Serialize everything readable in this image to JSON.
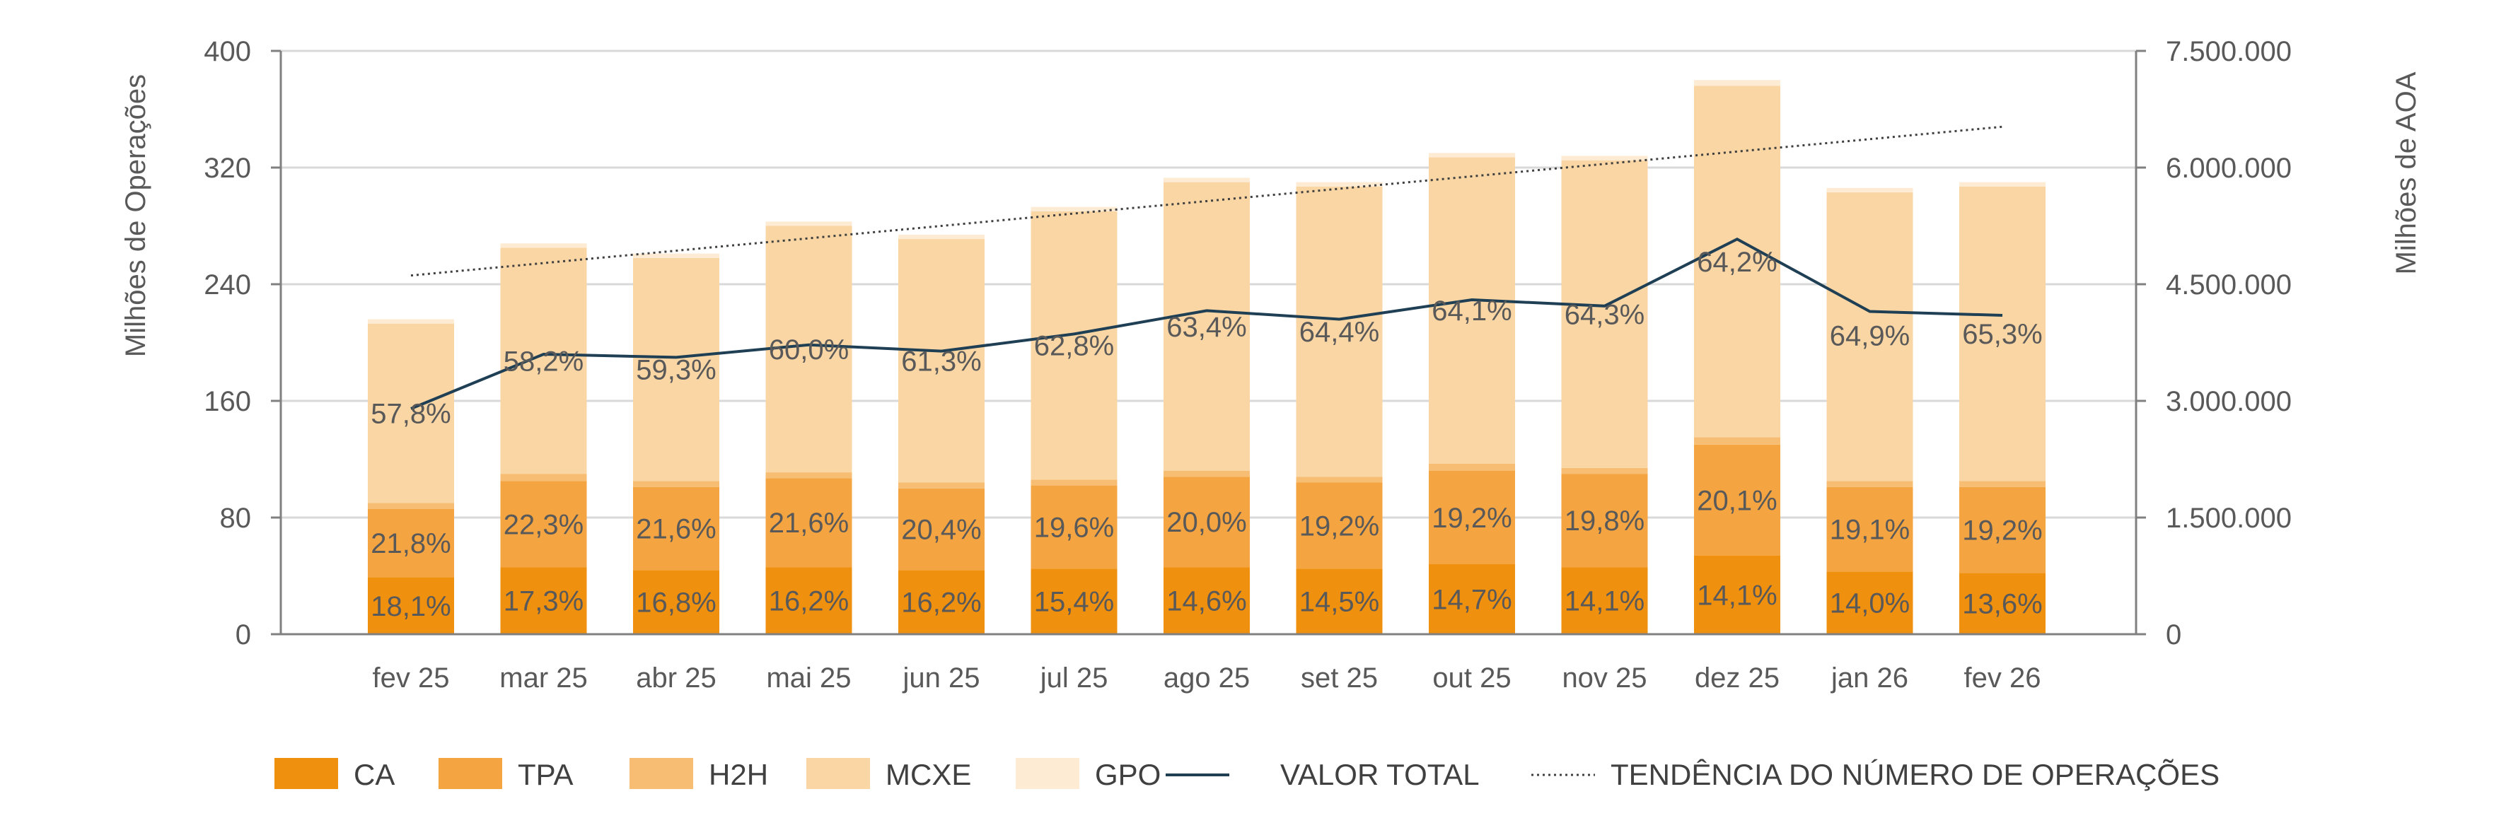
{
  "chart_data": {
    "type": "bar",
    "stacked": true,
    "categories": [
      "fev 25",
      "mar 25",
      "abr 25",
      "mai 25",
      "jun 25",
      "jul 25",
      "ago 25",
      "set 25",
      "out 25",
      "nov 25",
      "dez 25",
      "jan 26",
      "fev 26"
    ],
    "ylabel": "Milhões de Operações",
    "ylabel_right": "Milhões de AOA",
    "ylim": [
      0,
      400
    ],
    "yticks": [
      "0",
      "80",
      "160",
      "240",
      "320",
      "400"
    ],
    "ylim_right": [
      0,
      7500000
    ],
    "yticks_right": [
      "0",
      "1.500.000",
      "3.000.000",
      "4.500.000",
      "6.000.000",
      "7.500.000"
    ],
    "grid": true,
    "legend_position": "bottom",
    "series": [
      {
        "name": "CA",
        "color": "#F0900F",
        "values": [
          39,
          46,
          44,
          46,
          44,
          45,
          46,
          45,
          48,
          46,
          54,
          43,
          42
        ]
      },
      {
        "name": "TPA",
        "color": "#F4A541",
        "values": [
          47,
          59,
          57,
          61,
          56,
          57,
          62,
          59,
          64,
          64,
          76,
          58,
          59
        ]
      },
      {
        "name": "H2H",
        "color": "#F7BE73",
        "values": [
          4,
          5,
          4,
          4,
          4,
          4,
          4,
          4,
          5,
          4,
          5,
          4,
          4
        ]
      },
      {
        "name": "MCXE",
        "color": "#FAD6A4",
        "values": [
          123,
          155,
          153,
          169,
          167,
          184,
          198,
          199,
          210,
          211,
          241,
          198,
          202
        ]
      },
      {
        "name": "GPO",
        "color": "#FDEBD3",
        "values": [
          3,
          3,
          3,
          3,
          3,
          3,
          3,
          3,
          3,
          3,
          4,
          3,
          3
        ]
      }
    ],
    "line_series": {
      "name": "VALOR TOTAL",
      "color": "#1F3F55",
      "axis": "right",
      "values": [
        2900000,
        3600000,
        3560000,
        3720000,
        3640000,
        3860000,
        4160000,
        4050000,
        4300000,
        4220000,
        5080000,
        4150000,
        4100000
      ]
    },
    "trend_series": {
      "name": "TENDÊNCIA DO NÚMERO DE OPERAÇÕES",
      "color": "#404040",
      "axis": "left",
      "start": 246,
      "end": 348
    },
    "data_labels": {
      "CA": [
        "18,1%",
        "17,3%",
        "16,8%",
        "16,2%",
        "16,2%",
        "15,4%",
        "14,6%",
        "14,5%",
        "14,7%",
        "14,1%",
        "14,1%",
        "14,0%",
        "13,6%"
      ],
      "TPA": [
        "21,8%",
        "22,3%",
        "21,6%",
        "21,6%",
        "20,4%",
        "19,6%",
        "20,0%",
        "19,2%",
        "19,2%",
        "19,8%",
        "20,1%",
        "19,1%",
        "19,2%"
      ],
      "MCXE": [
        "57,8%",
        "58,2%",
        "59,3%",
        "60,0%",
        "61,3%",
        "62,8%",
        "63,4%",
        "64,4%",
        "64,1%",
        "64,3%",
        "64,2%",
        "64,9%",
        "65,3%"
      ]
    }
  }
}
